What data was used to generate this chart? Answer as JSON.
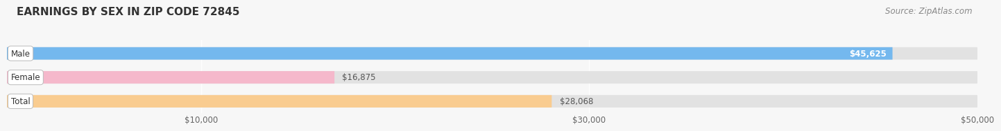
{
  "title": "EARNINGS BY SEX IN ZIP CODE 72845",
  "source": "Source: ZipAtlas.com",
  "categories": [
    "Male",
    "Female",
    "Total"
  ],
  "values": [
    45625,
    16875,
    28068
  ],
  "bar_colors": [
    "#74b8ee",
    "#f5b8cb",
    "#f9cc90"
  ],
  "bg_bar_color": "#e2e2e2",
  "value_labels": [
    "$45,625",
    "$16,875",
    "$28,068"
  ],
  "xmin": 0,
  "xmax": 50000,
  "xticks": [
    10000,
    30000,
    50000
  ],
  "xtick_labels": [
    "$10,000",
    "$30,000",
    "$50,000"
  ],
  "bg_color": "#f7f7f7",
  "title_fontsize": 11,
  "tick_fontsize": 8.5,
  "source_fontsize": 8.5,
  "bar_label_fontsize": 8.5,
  "cat_label_fontsize": 8.5
}
